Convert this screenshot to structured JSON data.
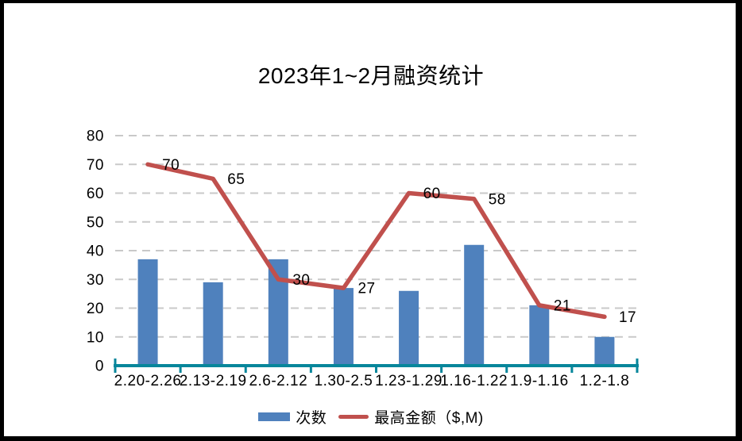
{
  "frame": {
    "background": "#FFFFFF",
    "border_color": "#000000"
  },
  "chart_data": {
    "type": "combo bar+line",
    "title": "2023年1~2月融资统计",
    "categories": [
      "2.20-2.26",
      "2.13-2.19",
      "2.6-2.12",
      "1.30-2.5",
      "1.23-1.29",
      "1.16-1.22",
      "1.9-1.16",
      "1.2-1.8"
    ],
    "series": [
      {
        "name": "次数",
        "type": "bar",
        "color": "#4F81BD",
        "values": [
          37,
          29,
          37,
          27,
          26,
          42,
          21,
          10
        ]
      },
      {
        "name": "最高金额（$,M)",
        "type": "line",
        "color": "#C0504D",
        "values": [
          70,
          65,
          30,
          27,
          60,
          58,
          21,
          17
        ],
        "data_labels_shown": true
      }
    ],
    "xlabel": "",
    "ylabel": "",
    "ylim": [
      0,
      80
    ],
    "yticks": [
      0,
      10,
      20,
      30,
      40,
      50,
      60,
      70,
      80
    ],
    "grid": "horizontal-dashed",
    "legend_position": "bottom",
    "colors": {
      "axis": "#07869B",
      "gridline": "#C9C9C9",
      "text": "#000000"
    }
  }
}
